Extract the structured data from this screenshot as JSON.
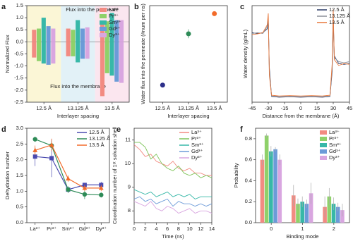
{
  "chart_data": [
    {
      "type": "bar",
      "panel": "a",
      "ylabel": "Normalized Flux",
      "xlabel": "Interlayer spacing",
      "categories": [
        "12.5 Å",
        "13.125 Å",
        "13.5 Å"
      ],
      "band_colors": [
        "#fbf6d6",
        "#e2f1f7",
        "#fbe6ef"
      ],
      "annotations": [
        "Flux into the permeate",
        "Flux into the membrane"
      ],
      "ylim": [
        -2.5,
        1.5
      ],
      "yticks": [
        {
          "value": -2.5,
          "label": "-2.5"
        },
        {
          "value": -2,
          "label": "-2.0"
        },
        {
          "value": -1.5,
          "label": "-1.5"
        },
        {
          "value": -1,
          "label": "-1.0"
        },
        {
          "value": -0.5,
          "label": "-0.5"
        },
        {
          "value": 0,
          "label": "0.0"
        },
        {
          "value": 0.5,
          "label": "0.5"
        },
        {
          "value": 1,
          "label": "1.0"
        },
        {
          "value": 1.5,
          "label": "1.5"
        }
      ],
      "legend": "upper right",
      "series": [
        {
          "name": "La³⁺",
          "color": "#f28b82",
          "values": [
            0.5,
            0.55,
            0.85
          ],
          "membrane": [
            -0.65,
            -0.6,
            -2.25
          ]
        },
        {
          "name": "Pr³⁺",
          "color": "#8fd16a",
          "values": [
            0.55,
            0.5,
            0.85
          ],
          "membrane": [
            -0.8,
            -0.6,
            -1.3
          ]
        },
        {
          "name": "Sm³⁺",
          "color": "#37b8a8",
          "values": [
            1.0,
            0.9,
            1.2
          ],
          "membrane": [
            -0.9,
            -0.85,
            -1.4
          ]
        },
        {
          "name": "Gd³⁺",
          "color": "#6c9bd8",
          "values": [
            0.65,
            0.55,
            0.9
          ],
          "membrane": [
            -0.95,
            -0.7,
            -1.65
          ]
        },
        {
          "name": "Dy³⁺",
          "color": "#d9a6e0",
          "values": [
            0.55,
            0.6,
            0.9
          ],
          "membrane": [
            -0.9,
            -0.7,
            -1.7
          ]
        }
      ]
    },
    {
      "type": "scatter",
      "panel": "b",
      "ylabel": "Water flux into the permeate (#num per ns)",
      "xlabel": "Interlayer spacing",
      "categories": [
        "12.5 Å",
        "13.125 Å",
        "13.5 Å"
      ],
      "values": [
        85,
        340,
        440
      ],
      "errors": [
        6,
        22,
        8
      ],
      "colors": [
        "#2c2f8a",
        "#2e8b57",
        "#f26b2a"
      ],
      "ylim": [
        0,
        480
      ]
    },
    {
      "type": "line",
      "panel": "c",
      "ylabel": "Water density (g/mL)",
      "xlabel": "Distance from the membrane (Å)",
      "x": [
        -45,
        -40,
        -35,
        -31,
        -30,
        -29,
        -27,
        -20,
        -10,
        0,
        10,
        20,
        27,
        29,
        30,
        31,
        35,
        40,
        45
      ],
      "xlim": [
        -45,
        45
      ],
      "xticks": [
        -45,
        -30,
        -15,
        0,
        15,
        30,
        45
      ],
      "ylim": [
        0,
        2.5
      ],
      "legend": "upper right",
      "series": [
        {
          "name": "12.5 Å",
          "color": "#2b3a67",
          "values": [
            1.8,
            1.78,
            1.8,
            1.9,
            2.1,
            0.9,
            0.15,
            0.13,
            0.14,
            0.13,
            0.14,
            0.13,
            0.15,
            0.8,
            2.1,
            1.2,
            1.0,
            0.98,
            1.0
          ]
        },
        {
          "name": "13.125 Å",
          "color": "#8a8f99",
          "values": [
            1.78,
            1.8,
            1.78,
            1.95,
            2.2,
            0.8,
            0.16,
            0.14,
            0.15,
            0.14,
            0.15,
            0.14,
            0.16,
            0.9,
            2.2,
            1.15,
            1.05,
            1.02,
            1.05
          ]
        },
        {
          "name": "13.5 Å",
          "color": "#e8773a",
          "values": [
            1.75,
            1.77,
            1.8,
            2.0,
            2.3,
            0.7,
            0.18,
            0.16,
            0.17,
            0.16,
            0.17,
            0.16,
            0.18,
            1.0,
            2.4,
            1.1,
            0.95,
            1.0,
            0.98
          ]
        }
      ]
    },
    {
      "type": "line",
      "panel": "d",
      "ylabel": "Dehydration number",
      "categories": [
        "La³⁺",
        "Pr³⁺",
        "Sm³⁺",
        "Gd³⁺",
        "Dy³⁺"
      ],
      "ylim": [
        0,
        3
      ],
      "yticks": [
        {
          "value": 0,
          "label": "0.0"
        },
        {
          "value": 0.5,
          "label": "0.5"
        },
        {
          "value": 1,
          "label": "1.0"
        },
        {
          "value": 1.5,
          "label": "1.5"
        },
        {
          "value": 2,
          "label": "2.0"
        },
        {
          "value": 2.5,
          "label": "2.5"
        },
        {
          "value": 3,
          "label": "3.0"
        }
      ],
      "legend": "upper right",
      "series": [
        {
          "name": "12.5 Å",
          "color": "#4a4ab0",
          "marker": "square",
          "values": [
            2.1,
            2.05,
            1.05,
            1.2,
            1.2
          ],
          "errors": [
            0.3,
            0.6,
            0.1,
            0.05,
            0.1
          ]
        },
        {
          "name": "13.125 Å",
          "color": "#2e8b57",
          "marker": "circle",
          "values": [
            2.65,
            2.45,
            1.05,
            0.9,
            0.88
          ],
          "errors": [
            0.08,
            0.15,
            0.1,
            0.15,
            0.08
          ]
        },
        {
          "name": "13.5 Å",
          "color": "#f26b2a",
          "marker": "triangle",
          "values": [
            2.3,
            2.47,
            1.4,
            1.1,
            1.1
          ],
          "errors": [
            0.15,
            0.2,
            0.1,
            0.1,
            0.1
          ]
        }
      ]
    },
    {
      "type": "line",
      "panel": "e",
      "ylabel": "Coordination number of 1ˢᵗ solvation shell",
      "xlabel": "Time (ns)",
      "x": [
        0,
        1,
        2,
        3,
        4,
        5,
        6,
        7,
        8,
        9,
        10,
        11,
        12,
        13,
        14
      ],
      "xlim": [
        0,
        14
      ],
      "xticks": [
        0,
        2,
        4,
        6,
        8,
        10,
        12,
        14
      ],
      "ylim": [
        7.5,
        11.5
      ],
      "yticks": [
        8,
        9,
        10,
        11
      ],
      "legend": "upper right",
      "series": [
        {
          "name": "La³⁺",
          "color": "#f28b82",
          "values": [
            10.8,
            10.6,
            10.3,
            10.4,
            10.1,
            10.0,
            9.9,
            10.1,
            9.8,
            9.7,
            9.8,
            9.6,
            9.6,
            9.5,
            9.5
          ]
        },
        {
          "name": "Pr³⁺",
          "color": "#7fc45a",
          "values": [
            10.9,
            10.9,
            10.7,
            10.2,
            10.4,
            10.0,
            9.8,
            9.7,
            9.9,
            9.6,
            9.5,
            9.6,
            9.4,
            9.5,
            9.4
          ]
        },
        {
          "name": "Sm³⁺",
          "color": "#37b8a8",
          "values": [
            8.9,
            8.8,
            8.7,
            8.8,
            8.6,
            8.7,
            8.8,
            8.6,
            8.7,
            8.6,
            8.7,
            8.5,
            8.6,
            8.6,
            8.6
          ]
        },
        {
          "name": "Gd³⁺",
          "color": "#6c9bd8",
          "values": [
            8.5,
            8.6,
            8.4,
            8.5,
            8.3,
            8.4,
            8.5,
            8.2,
            8.4,
            8.3,
            8.3,
            8.2,
            8.3,
            8.2,
            8.3
          ]
        },
        {
          "name": "Dy³⁺",
          "color": "#d9a6e0",
          "values": [
            8.4,
            8.3,
            8.2,
            8.4,
            8.1,
            8.0,
            8.2,
            8.1,
            7.9,
            8.0,
            8.1,
            7.9,
            8.0,
            8.0,
            7.9
          ]
        }
      ]
    },
    {
      "type": "bar",
      "panel": "f",
      "ylabel": "Probability",
      "xlabel": "Binding mode",
      "categories": [
        "0",
        "1",
        "2"
      ],
      "ylim": [
        0,
        0.9
      ],
      "yticks": [
        {
          "value": 0,
          "label": "0.0"
        },
        {
          "value": 0.2,
          "label": "0.2"
        },
        {
          "value": 0.4,
          "label": "0.4"
        },
        {
          "value": 0.6,
          "label": "0.6"
        },
        {
          "value": 0.8,
          "label": "0.8"
        }
      ],
      "legend": "upper right",
      "series": [
        {
          "name": "La³⁺",
          "color": "#f28b82",
          "values": [
            0.6,
            0.26,
            0.15
          ],
          "errors": [
            0.05,
            0.1,
            0.1
          ]
        },
        {
          "name": "Pr³⁺",
          "color": "#8fd16a",
          "values": [
            0.83,
            0.18,
            0.25
          ],
          "errors": [
            0.02,
            0.05,
            0.08
          ]
        },
        {
          "name": "Sm³⁺",
          "color": "#37b8a8",
          "values": [
            0.68,
            0.2,
            0.18
          ],
          "errors": [
            0.05,
            0.05,
            0.06
          ]
        },
        {
          "name": "Gd³⁺",
          "color": "#6c9bd8",
          "values": [
            0.7,
            0.18,
            0.15
          ],
          "errors": [
            0.02,
            0.04,
            0.04
          ]
        },
        {
          "name": "Dy³⁺",
          "color": "#d9a6e0",
          "values": [
            0.6,
            0.28,
            0.12
          ],
          "errors": [
            0.05,
            0.1,
            0.06
          ]
        }
      ]
    }
  ]
}
